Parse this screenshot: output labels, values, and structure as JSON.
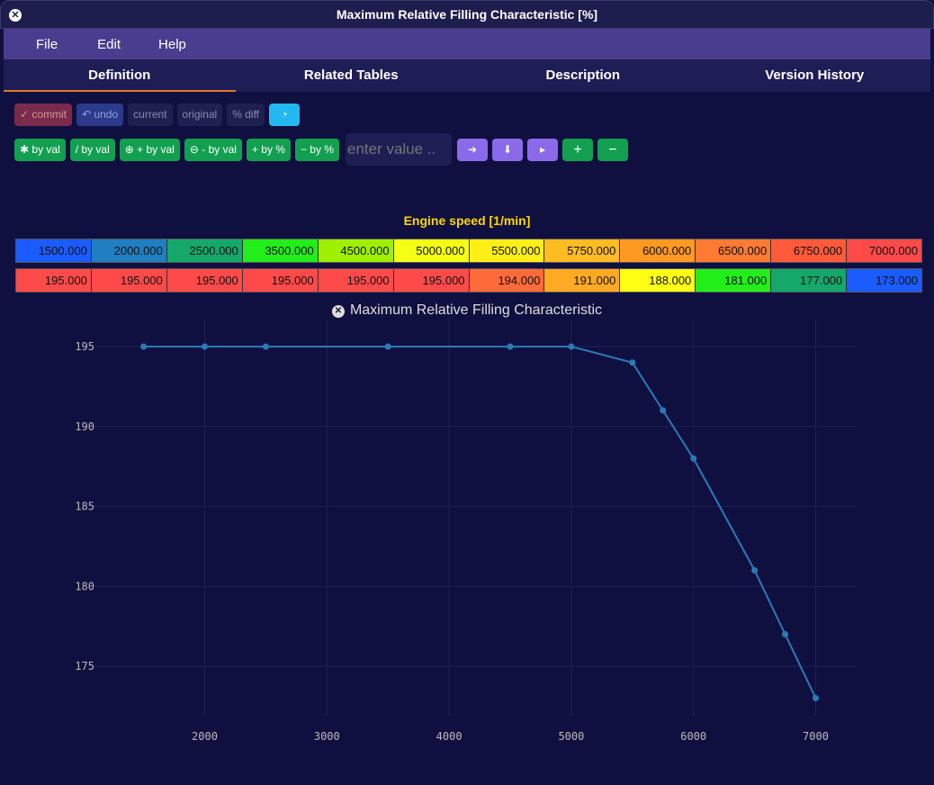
{
  "window": {
    "title": "Maximum Relative Filling Characteristic [%]"
  },
  "menu": [
    "File",
    "Edit",
    "Help"
  ],
  "tabs": [
    "Definition",
    "Related Tables",
    "Description",
    "Version History"
  ],
  "toolbar1": {
    "commit": "✓ commit",
    "undo": "↶ undo",
    "current": "current",
    "original": "original",
    "pct_diff": "% diff",
    "cyan_icon": "◔"
  },
  "toolbar2": {
    "mul_val": "✱ by val",
    "div_val": "/ by val",
    "add_val": "⊕ + by val",
    "sub_val": "⊖ - by val",
    "add_pct": "+ by %",
    "sub_pct": "− by %",
    "input_placeholder": "enter value ..",
    "arrow_right": "➜",
    "arrow_down": "⬇",
    "caret_right": "▸",
    "plus": "+",
    "minus": "−"
  },
  "table": {
    "axis_title": "Engine speed [1/min]",
    "x_values": [
      "1500.000",
      "2000.000",
      "2500.000",
      "3500.000",
      "4500.000",
      "5000.000",
      "5500.000",
      "5750.000",
      "6000.000",
      "6500.000",
      "6750.000",
      "7000.000"
    ],
    "x_colors": [
      "#1a5cff",
      "#1f7fc0",
      "#14a86a",
      "#22ee1a",
      "#9ef000",
      "#f4ff14",
      "#ffef14",
      "#ffbb22",
      "#ff9922",
      "#ff7a33",
      "#ff5a3a",
      "#ff4a4a"
    ],
    "y_values": [
      "195.000",
      "195.000",
      "195.000",
      "195.000",
      "195.000",
      "195.000",
      "194.000",
      "191.000",
      "188.000",
      "181.000",
      "177.000",
      "173.000"
    ],
    "y_colors": [
      "#ff4a4a",
      "#ff4a4a",
      "#ff4a4a",
      "#ff4a4a",
      "#ff4a4a",
      "#ff4a4a",
      "#ff6a3a",
      "#ffaa22",
      "#ffff14",
      "#22ee1a",
      "#14a86a",
      "#1a5cff"
    ]
  },
  "chart_title": "Maximum Relative Filling Characteristic",
  "chart_data": {
    "type": "line",
    "title": "Maximum Relative Filling Characteristic",
    "x": [
      1500,
      2000,
      2500,
      3500,
      4500,
      5000,
      5500,
      5750,
      6000,
      6500,
      6750,
      7000
    ],
    "series": [
      {
        "values": [
          195,
          195,
          195,
          195,
          195,
          195,
          194,
          191,
          188,
          181,
          177,
          173
        ]
      }
    ],
    "xlim": [
      1500,
      7000
    ],
    "ylim": [
      173,
      195
    ],
    "x_ticks": [
      2000,
      3000,
      4000,
      5000,
      6000,
      7000
    ],
    "y_ticks": [
      175,
      180,
      185,
      190,
      195
    ],
    "grid": true,
    "line_color": "#2a7ab8"
  }
}
